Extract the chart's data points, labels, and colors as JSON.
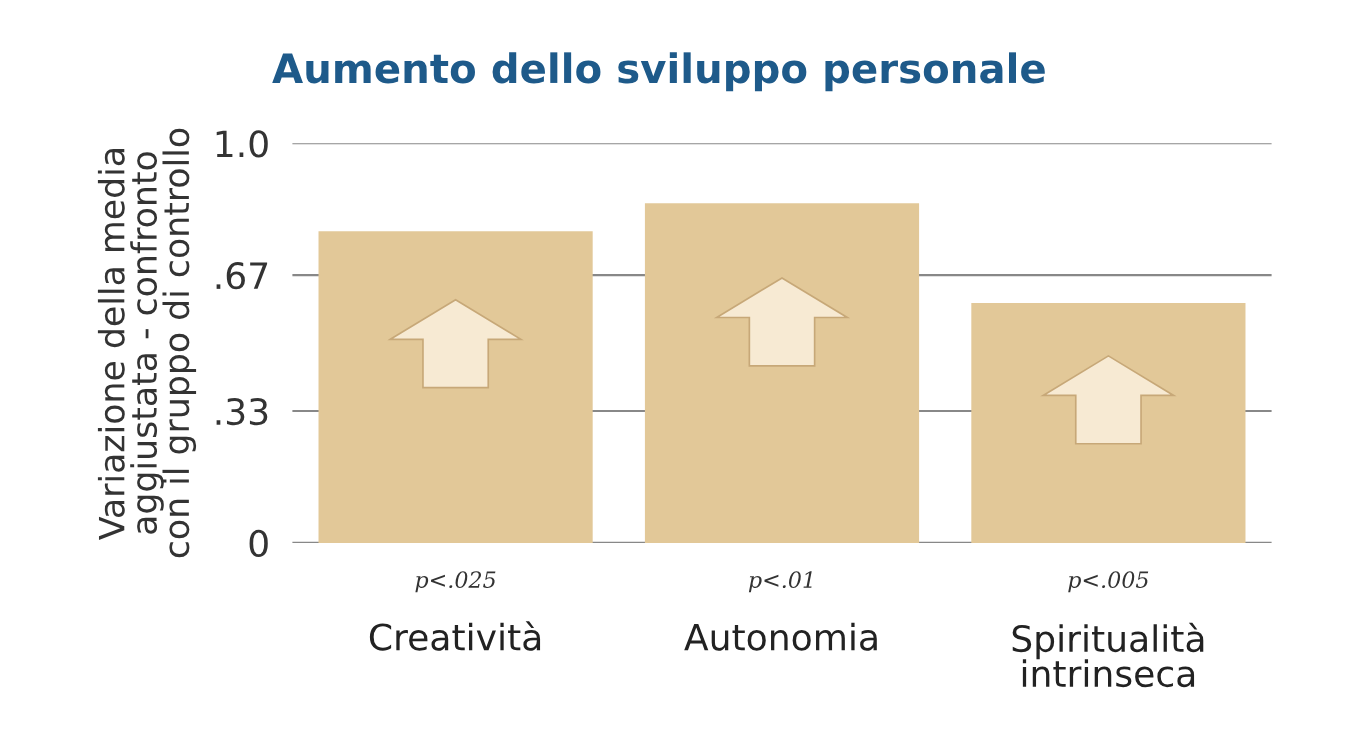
{
  "chart_data": {
    "type": "bar",
    "title": "Aumento dello sviluppo personale",
    "ylabel": "Variazione della media\naggiustata - confronto\ncon il gruppo di controllo",
    "categories": [
      "Creatività",
      "Autonomia",
      "Spiritualità\nintrinseca"
    ],
    "values": [
      0.78,
      0.85,
      0.6
    ],
    "color": "#e2c898",
    "ylim": [
      0,
      1.0
    ],
    "yticks": [
      0,
      {
        "value": 0.33,
        "label": ".33"
      },
      {
        "value": 0.67,
        "label": ".67"
      },
      {
        "value": 1.0,
        "label": "1.0"
      }
    ],
    "grid": "y",
    "annotations": [
      "p<.025",
      "p<.01",
      "p<.005"
    ]
  }
}
